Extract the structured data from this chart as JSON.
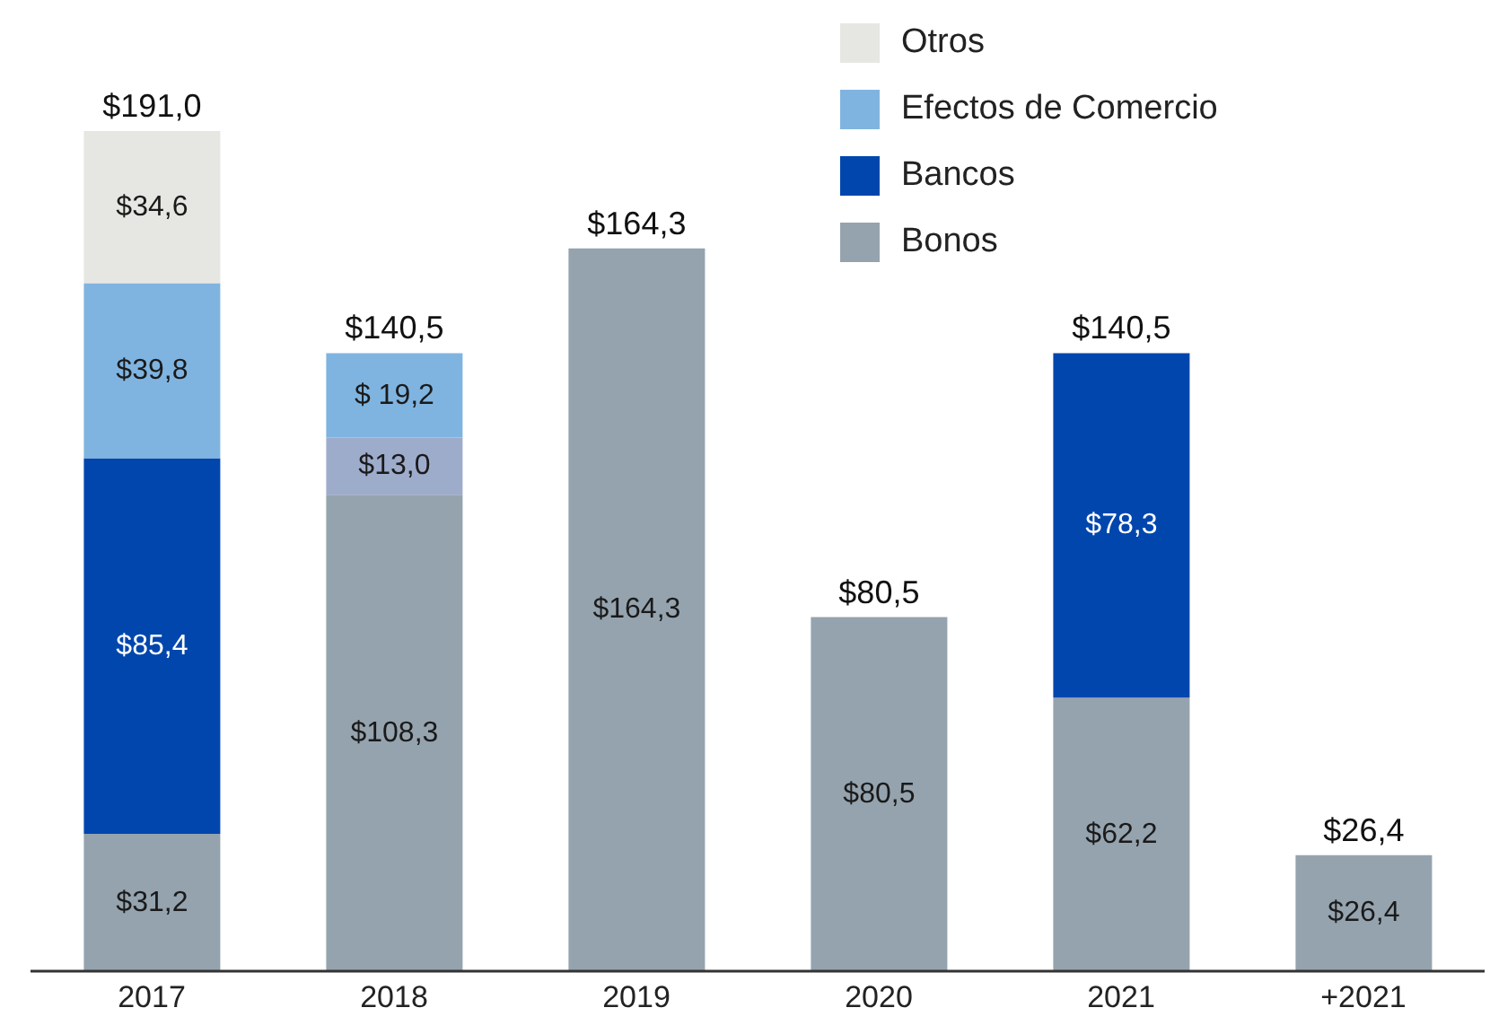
{
  "chart_data": {
    "type": "bar",
    "stacked": true,
    "categories": [
      "2017",
      "2018",
      "2019",
      "2020",
      "2021",
      "+2021"
    ],
    "series": [
      {
        "name": "Bonos",
        "color": "#95a3ae",
        "values": [
          31.2,
          108.3,
          164.3,
          80.5,
          62.2,
          26.4
        ],
        "value_labels": [
          "$31,2",
          "$108,3",
          "$164,3",
          "$80,5",
          "$62,2",
          "$26,4"
        ]
      },
      {
        "color": "#9eaccc",
        "values": [
          null,
          13.0,
          null,
          null,
          null,
          null
        ],
        "value_labels": [
          null,
          "$13,0",
          null,
          null,
          null,
          null
        ]
      },
      {
        "name": "Bancos",
        "color": "#0046ad",
        "values": [
          85.4,
          null,
          null,
          null,
          78.3,
          null
        ],
        "value_labels": [
          "$85,4",
          null,
          null,
          null,
          "$78,3",
          null
        ]
      },
      {
        "name": "Efectos de Comercio",
        "color": "#80b4e0",
        "values": [
          39.8,
          19.2,
          null,
          null,
          null,
          null
        ],
        "value_labels": [
          "$39,8",
          "$ 19,2",
          null,
          null,
          null,
          null
        ]
      },
      {
        "name": "Otros",
        "color": "#e6e6e2",
        "values": [
          34.6,
          null,
          null,
          null,
          null,
          null
        ],
        "value_labels": [
          "$34,6",
          null,
          null,
          null,
          null,
          null
        ]
      }
    ],
    "totals": [
      "$191,0",
      "$140,5",
      "$164,3",
      "$80,5",
      "$140,5",
      "$26,4"
    ],
    "legend": "top right",
    "grid": false
  }
}
